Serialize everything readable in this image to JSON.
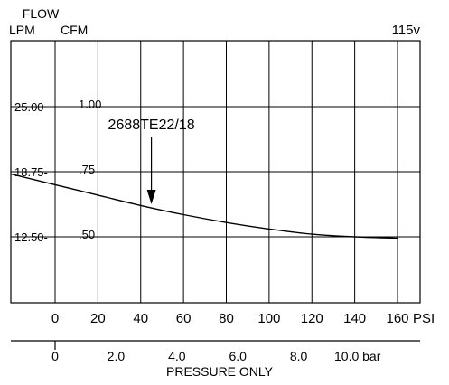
{
  "chart_data": {
    "type": "line",
    "header": {
      "flow_label": "FLOW",
      "lpm_label": "LPM",
      "cfm_label": "CFM",
      "voltage": "115v"
    },
    "x_psi": {
      "ticks": [
        0,
        20,
        40,
        60,
        80,
        100,
        120,
        140,
        160
      ],
      "unit": "PSI",
      "range": [
        0,
        160
      ]
    },
    "x_bar": {
      "ticks": [
        {
          "value": 0,
          "label": "0"
        },
        {
          "value": 2,
          "label": "2.0"
        },
        {
          "value": 4,
          "label": "4.0"
        },
        {
          "value": 6,
          "label": "6.0"
        },
        {
          "value": 8,
          "label": "8.0"
        },
        {
          "value": 10,
          "label": "10.0 bar"
        }
      ],
      "title": "PRESSURE ONLY"
    },
    "y_cfm": {
      "ticks": [
        {
          "value": 1.0,
          "label": "1.00"
        },
        {
          "value": 0.75,
          "label": ".75"
        },
        {
          "value": 0.5,
          "label": ".50"
        }
      ]
    },
    "y_lpm": {
      "ticks": [
        {
          "value": 25.0,
          "label": "25.00-"
        },
        {
          "value": 18.75,
          "label": "18.75-"
        },
        {
          "value": 12.5,
          "label": "12.50-"
        }
      ]
    },
    "grid": true,
    "series": [
      {
        "name": "2688TE22/18",
        "x": [
          0,
          20,
          40,
          60,
          80,
          100,
          120,
          140,
          160
        ],
        "y": [
          0.7,
          0.66,
          0.62,
          0.585,
          0.555,
          0.53,
          0.51,
          0.5,
          0.495
        ]
      }
    ],
    "annotation": {
      "text": "2688TE22/18",
      "arrow_x": 45
    }
  }
}
